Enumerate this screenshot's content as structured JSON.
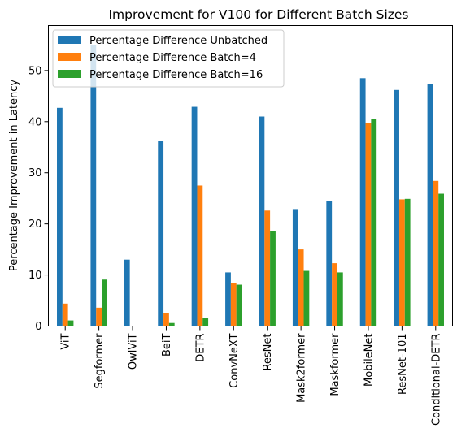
{
  "chart_data": {
    "type": "bar",
    "title": "Improvement for V100 for Different Batch Sizes",
    "xlabel": "",
    "ylabel": "Percentage Improvement in Latency",
    "categories": [
      "ViT",
      "Segformer",
      "OwlViT",
      "BeiT",
      "DETR",
      "ConvNeXT",
      "ResNet",
      "Mask2former",
      "Maskformer",
      "MobileNet",
      "ResNet-101",
      "Conditional-DETR"
    ],
    "series": [
      {
        "name": "Percentage Difference Unbatched",
        "color": "#1f77b4",
        "values": [
          42.7,
          55.0,
          13.0,
          36.2,
          42.9,
          10.5,
          41.0,
          22.9,
          24.5,
          48.5,
          46.2,
          47.3
        ]
      },
      {
        "name": "Percentage Difference Batch=4",
        "color": "#ff7f0e",
        "values": [
          4.4,
          3.6,
          0.0,
          2.6,
          27.5,
          8.4,
          22.6,
          15.0,
          12.3,
          39.7,
          24.8,
          28.4
        ]
      },
      {
        "name": "Percentage Difference Batch=16",
        "color": "#2ca02c",
        "values": [
          1.1,
          9.1,
          0.0,
          0.6,
          1.6,
          8.1,
          18.6,
          10.8,
          10.5,
          40.5,
          24.9,
          25.9
        ]
      }
    ],
    "ylim": [
      0,
      58.8
    ],
    "yticks": [
      0,
      10,
      20,
      30,
      40,
      50
    ],
    "legend_position": "top-left",
    "grid": false
  }
}
